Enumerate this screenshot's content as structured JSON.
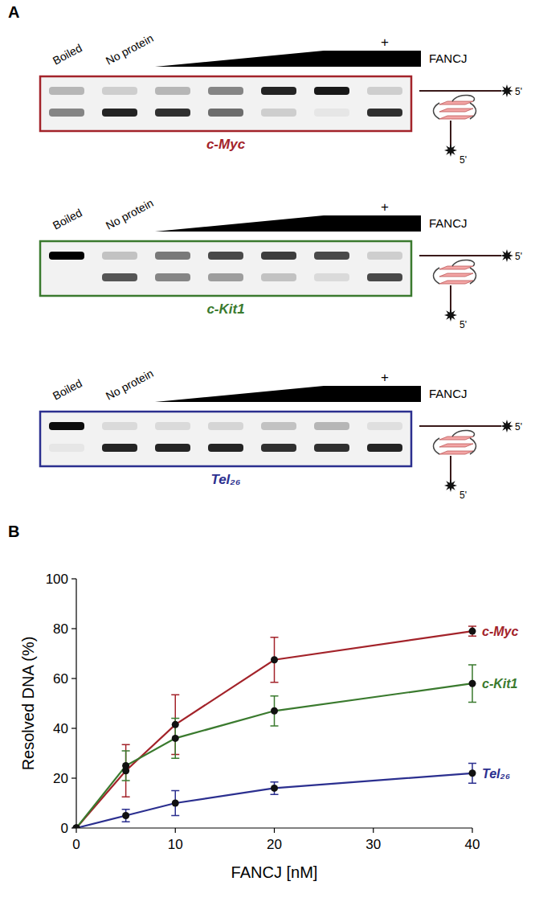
{
  "panel_letters": [
    "A",
    "B"
  ],
  "panel_a": {
    "gels": [
      {
        "name": "c-Myc",
        "color": "#a3232a",
        "lane_labels": [
          "Boiled",
          "No protein"
        ],
        "plus": "+",
        "protein": "FANCJ",
        "end_label": "5'",
        "upper": [
          0.25,
          0.15,
          0.25,
          0.45,
          0.85,
          0.9,
          0.15
        ],
        "lower": [
          0.45,
          0.85,
          0.8,
          0.55,
          0.15,
          0.05,
          0.8
        ]
      },
      {
        "name": "c-Kit1",
        "color": "#3a7a2e",
        "lane_labels": [
          "Boiled",
          "No protein"
        ],
        "plus": "+",
        "protein": "FANCJ",
        "end_label": "5'",
        "upper": [
          1.0,
          0.2,
          0.5,
          0.7,
          0.75,
          0.7,
          0.15
        ],
        "lower": [
          0.0,
          0.65,
          0.45,
          0.35,
          0.2,
          0.1,
          0.7
        ]
      },
      {
        "name": "Tel₂₆",
        "color": "#2b2f8f",
        "lane_labels": [
          "Boiled",
          "No protein"
        ],
        "plus": "+",
        "protein": "FANCJ",
        "end_label": "5'",
        "upper": [
          0.95,
          0.1,
          0.1,
          0.12,
          0.2,
          0.25,
          0.08
        ],
        "lower": [
          0.05,
          0.85,
          0.85,
          0.85,
          0.8,
          0.8,
          0.85
        ]
      }
    ]
  },
  "chart_data": {
    "type": "line",
    "x_label": "FANCJ [nM]",
    "y_label": "Resolved DNA (%)",
    "x": [
      0,
      5,
      10,
      20,
      40
    ],
    "xlim": [
      0,
      40
    ],
    "xticks": [
      0,
      10,
      20,
      30,
      40
    ],
    "ylim": [
      0,
      100
    ],
    "yticks": [
      0,
      20,
      40,
      60,
      80,
      100
    ],
    "grid": false,
    "marker": "circle",
    "series": [
      {
        "name": "c-Myc",
        "color": "#a3232a",
        "values": [
          0,
          23,
          41.5,
          67.5,
          79
        ],
        "errors": [
          0,
          10.5,
          12,
          9,
          2
        ]
      },
      {
        "name": "c-Kit1",
        "color": "#3a7a2e",
        "values": [
          0,
          25,
          36,
          47,
          58
        ],
        "errors": [
          0,
          6,
          8,
          6,
          7.5
        ]
      },
      {
        "name": "Tel₂₆",
        "color": "#2b2f8f",
        "values": [
          0,
          5,
          10,
          16,
          22
        ],
        "errors": [
          0,
          2.5,
          5,
          2.5,
          4
        ]
      }
    ]
  }
}
